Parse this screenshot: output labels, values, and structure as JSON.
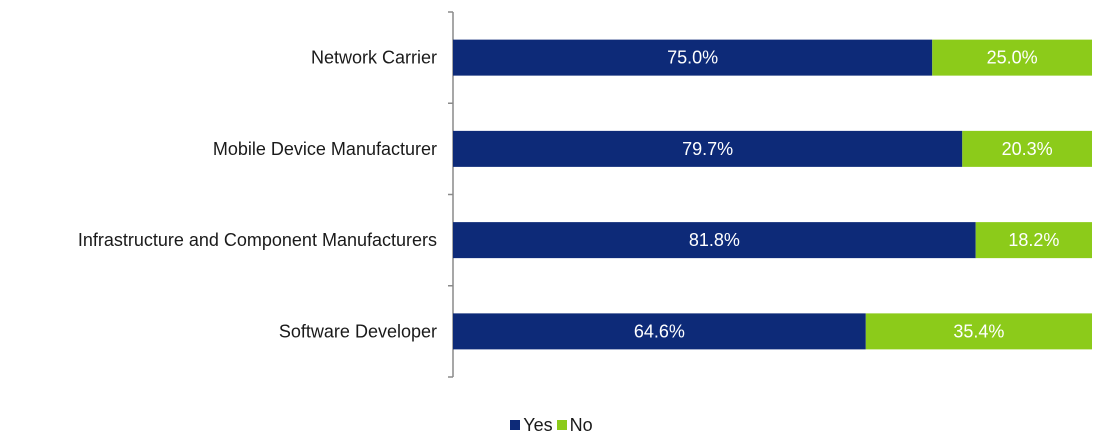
{
  "chart_data": {
    "type": "bar",
    "orientation": "horizontal",
    "stacked": true,
    "categories": [
      "Network Carrier",
      "Mobile Device Manufacturer",
      "Infrastructure and Component Manufacturers",
      "Software Developer"
    ],
    "series": [
      {
        "name": "Yes",
        "color": "#0d2a78",
        "values": [
          75.0,
          79.7,
          81.8,
          64.6
        ],
        "labels": [
          "75.0%",
          "79.7%",
          "81.8%",
          "64.6%"
        ]
      },
      {
        "name": "No",
        "color": "#8ccb1a",
        "values": [
          25.0,
          20.3,
          18.2,
          35.4
        ],
        "labels": [
          "25.0%",
          "20.3%",
          "18.2%",
          "35.4%"
        ]
      }
    ],
    "xlim": [
      0,
      100
    ],
    "grid": false,
    "legend_position": "bottom-center"
  }
}
